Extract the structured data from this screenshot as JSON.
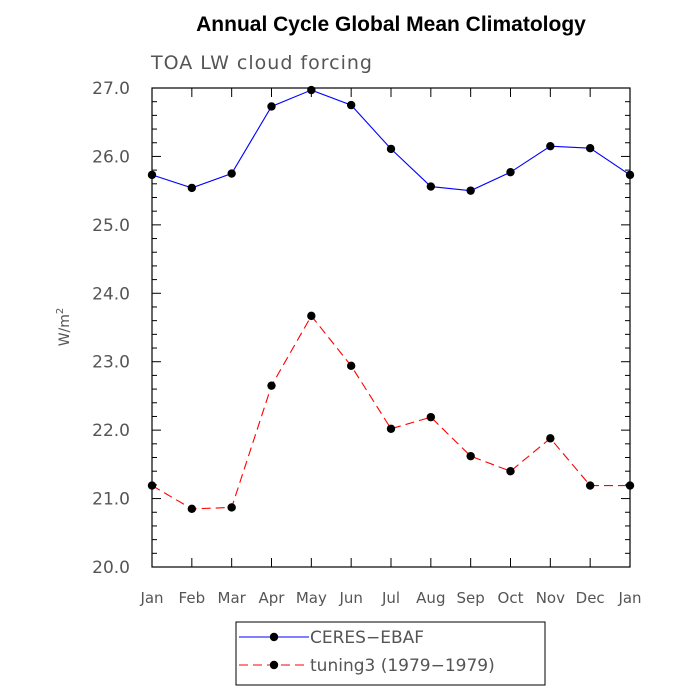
{
  "chart_data": {
    "type": "line",
    "title": "Annual Cycle Global Mean Climatology",
    "subtitle": "TOA LW cloud forcing",
    "ylabel": "W/m",
    "ylabel_sup": "2",
    "xlabel": "",
    "categories": [
      "Jan",
      "Feb",
      "Mar",
      "Apr",
      "May",
      "Jun",
      "Jul",
      "Aug",
      "Sep",
      "Oct",
      "Nov",
      "Dec",
      "Jan"
    ],
    "ylim": [
      20.0,
      27.0
    ],
    "yticks": [
      "20.0",
      "21.0",
      "22.0",
      "23.0",
      "24.0",
      "25.0",
      "26.0",
      "27.0"
    ],
    "grid": false,
    "legend_position": "bottom",
    "series": [
      {
        "name": "CERES−EBAF",
        "color": "#0000ff",
        "dash": "solid",
        "values": [
          25.73,
          25.54,
          25.75,
          26.73,
          26.97,
          26.75,
          26.11,
          25.56,
          25.5,
          25.77,
          26.15,
          26.12,
          25.73
        ]
      },
      {
        "name": "tuning3 (1979−1979)",
        "color": "#ff0000",
        "dash": "dashed",
        "values": [
          21.19,
          20.85,
          20.87,
          22.65,
          23.67,
          22.94,
          22.02,
          22.19,
          21.62,
          21.4,
          21.88,
          21.19,
          21.19
        ]
      }
    ]
  }
}
